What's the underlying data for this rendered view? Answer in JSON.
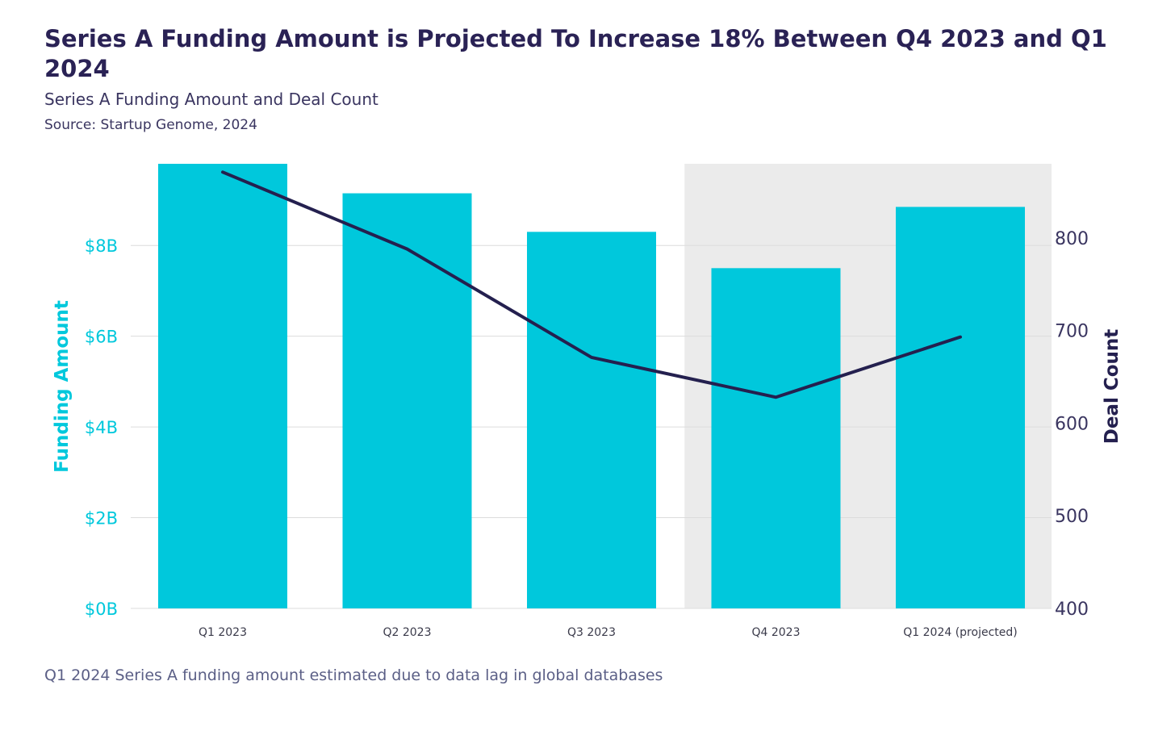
{
  "header": {
    "title": "Series A Funding Amount is Projected To Increase 18% Between Q4 2023 and Q1 2024",
    "subtitle": "Series A Funding Amount and Deal Count",
    "source": "Source: Startup Genome, 2024"
  },
  "footnote": "Q1 2024 Series A funding amount estimated due to data lag in global databases",
  "chart_data": {
    "type": "bar",
    "categories": [
      "Q1 2023",
      "Q2 2023",
      "Q3 2023",
      "Q4 2023",
      "Q1 2024 (projected)"
    ],
    "series": [
      {
        "type": "bar",
        "axis": "left",
        "values": [
          9.8,
          9.15,
          8.3,
          7.5,
          8.85
        ]
      },
      {
        "type": "line",
        "axis": "right",
        "values": [
          871,
          788,
          671,
          628,
          693
        ]
      }
    ],
    "highlighted_categories": [
      "Q4 2023",
      "Q1 2024 (projected)"
    ],
    "y_left": {
      "label": "Funding Amount",
      "range": [
        0,
        9.8
      ],
      "ticks": [
        0,
        2,
        4,
        6,
        8
      ],
      "tick_labels": [
        "$0B",
        "$2B",
        "$4B",
        "$6B",
        "$8B"
      ]
    },
    "y_right": {
      "label": "Deal Count",
      "range": [
        400,
        880
      ],
      "ticks": [
        400,
        500,
        600,
        700,
        800
      ],
      "tick_labels": [
        "400",
        "500",
        "600",
        "700",
        "800"
      ]
    },
    "grid": true,
    "colors": {
      "bars": "#00c8dc",
      "line": "#24204f",
      "highlight_band": "#ebebeb",
      "grid": "#dcdcdc"
    }
  }
}
